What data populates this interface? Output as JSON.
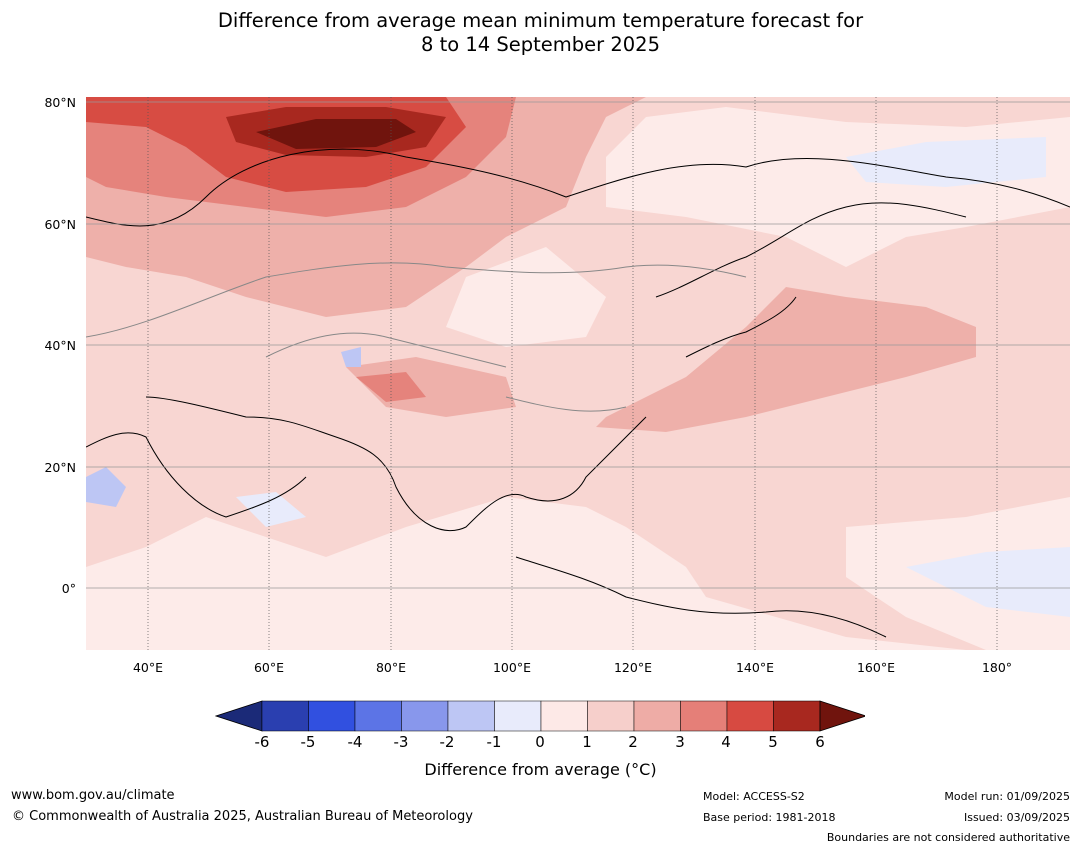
{
  "title_line1": "Difference from average mean minimum temperature forecast for",
  "title_line2": "8 to 14 September 2025",
  "lat_labels": [
    "80°N",
    "60°N",
    "40°N",
    "20°N",
    "0°"
  ],
  "lon_labels": [
    "40°E",
    "60°E",
    "80°E",
    "100°E",
    "120°E",
    "140°E",
    "160°E",
    "180°"
  ],
  "colorbar": {
    "ticks": [
      "-6",
      "-5",
      "-4",
      "-3",
      "-2",
      "-1",
      "0",
      "1",
      "2",
      "3",
      "4",
      "5",
      "6"
    ],
    "label": "Difference from average (°C)",
    "colors": [
      "#1b2a78",
      "#2a3fb0",
      "#3150e0",
      "#5c74e6",
      "#8897ec",
      "#bdc6f4",
      "#e8ebfb",
      "#fde9e7",
      "#f6cfcb",
      "#eeaca6",
      "#e57f78",
      "#d74a41",
      "#a8281f",
      "#70140d"
    ]
  },
  "footer": {
    "website": "www.bom.gov.au/climate",
    "copyright": "© Commonwealth of Australia 2025, Australian Bureau of Meteorology",
    "model": "Model: ACCESS-S2",
    "base_period": "Base period: 1981-2018",
    "model_run": "Model run: 01/09/2025",
    "issued": "Issued: 03/09/2025",
    "boundaries_note": "Boundaries are not considered authoritative"
  }
}
